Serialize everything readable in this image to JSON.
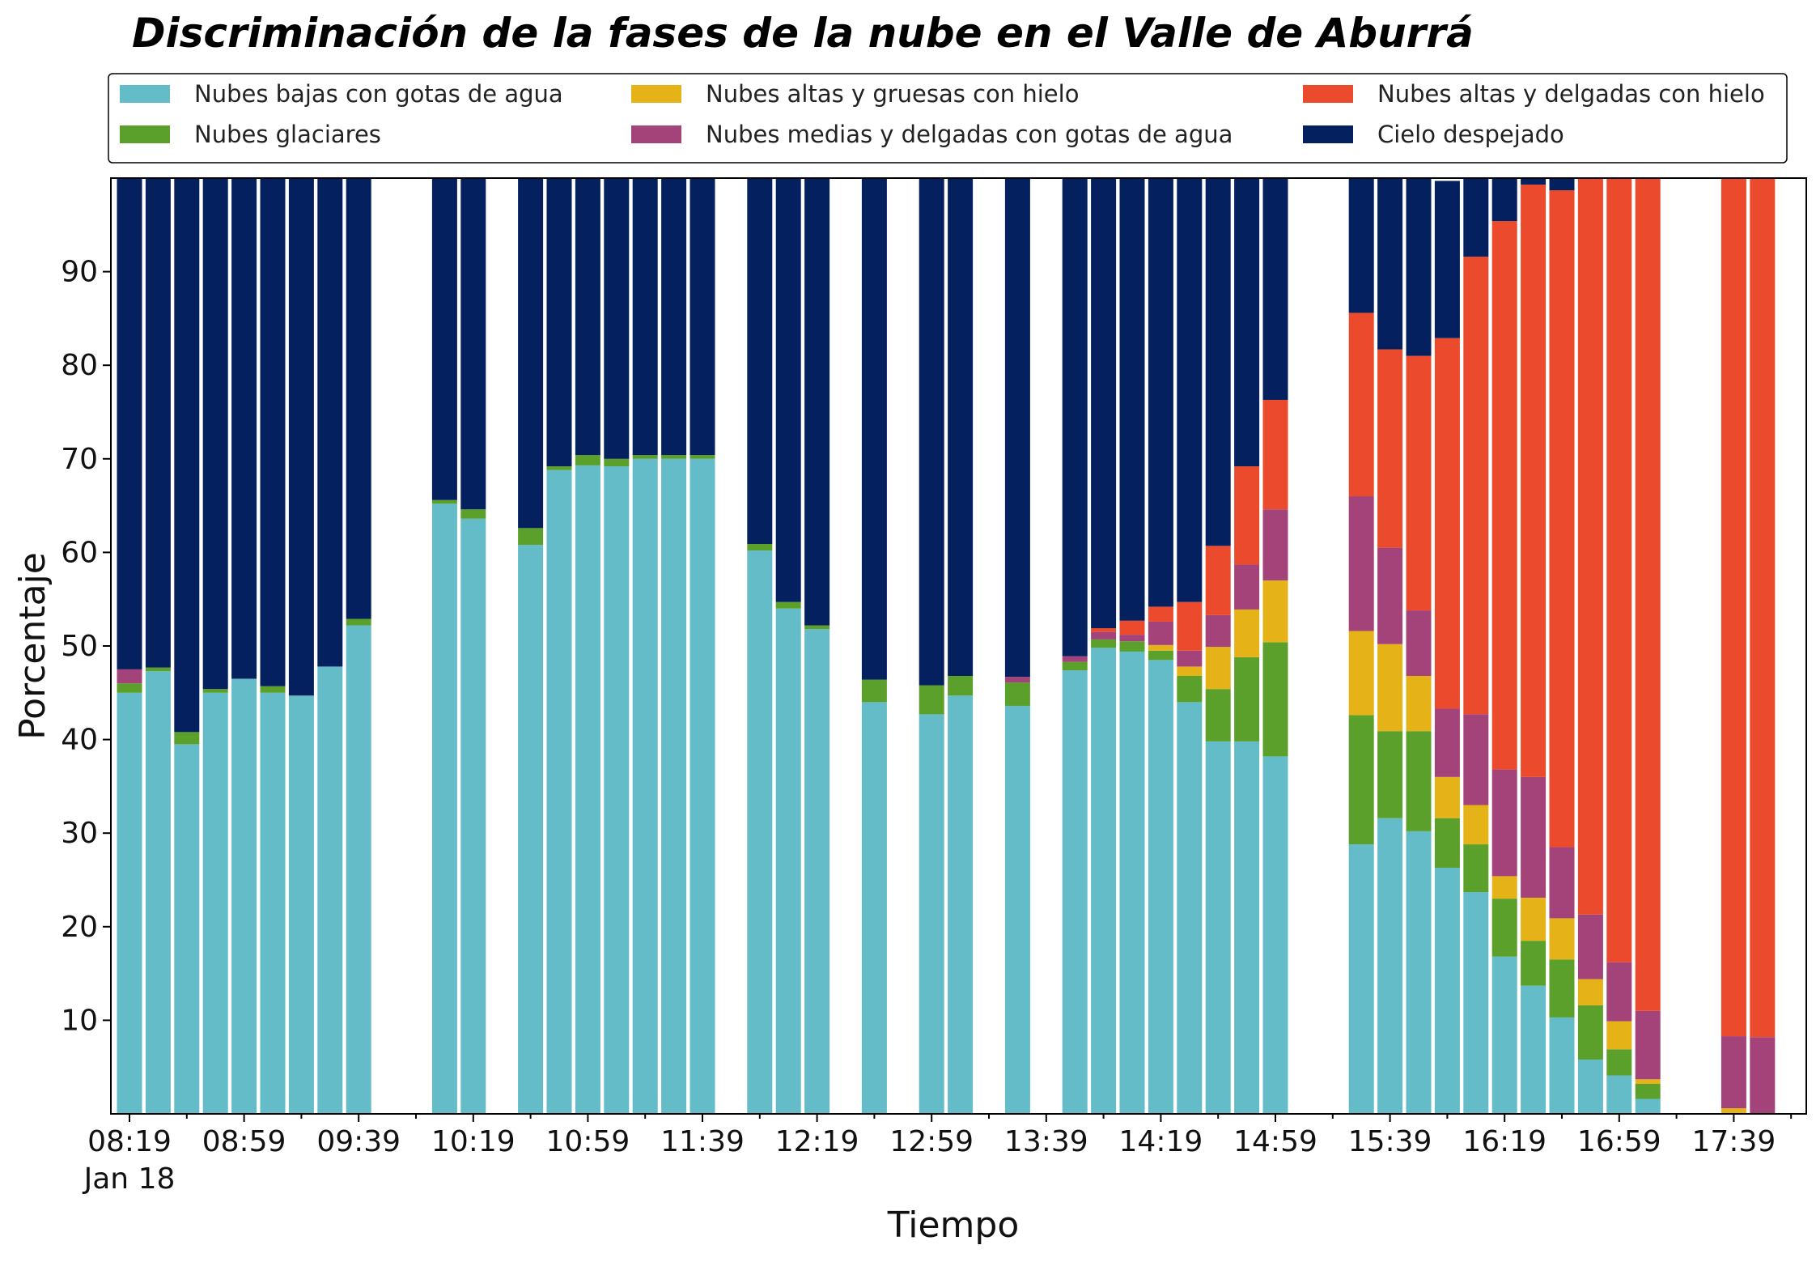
{
  "chart_data": {
    "type": "bar",
    "stacked": true,
    "title": "Discriminación de la fases de la nube en el Valle de Aburrá",
    "xlabel": "Tiempo",
    "ylabel": "Porcentaje",
    "ylim": [
      0,
      100
    ],
    "y_ticks": [
      10,
      20,
      30,
      40,
      50,
      60,
      70,
      80,
      90
    ],
    "x_tick_labels": [
      "08:19",
      "08:59",
      "09:39",
      "10:19",
      "10:59",
      "11:39",
      "12:19",
      "12:59",
      "13:39",
      "14:19",
      "14:59",
      "15:39",
      "16:19",
      "16:59",
      "17:39"
    ],
    "x_tick_sublabel": "Jan 18",
    "legend_position": "top",
    "interval_minutes": 10,
    "start_time": "08:19",
    "series": [
      {
        "name": "Nubes bajas con gotas de agua",
        "color": "#63bcc8",
        "values": [
          45.0,
          47.3,
          39.5,
          45.0,
          46.5,
          45.0,
          44.7,
          47.8,
          52.2,
          null,
          null,
          65.2,
          63.6,
          null,
          60.8,
          68.8,
          69.3,
          69.2,
          70.0,
          70.0,
          70.0,
          null,
          60.2,
          54.0,
          51.8,
          null,
          44.0,
          null,
          42.7,
          44.7,
          null,
          43.6,
          null,
          47.4,
          49.8,
          49.4,
          48.5,
          44.0,
          39.8,
          39.8,
          38.2,
          null,
          null,
          28.8,
          31.6,
          30.2,
          26.3,
          23.7,
          16.8,
          13.7,
          10.3,
          5.8,
          4.1,
          1.6,
          null,
          null,
          0,
          0
        ]
      },
      {
        "name": "Nubes glaciares",
        "color": "#5ca02c",
        "values": [
          1.0,
          0.4,
          1.3,
          0.4,
          0,
          0.7,
          0,
          0,
          0.7,
          null,
          null,
          0.4,
          1.0,
          null,
          1.8,
          0.4,
          1.1,
          0.8,
          0.4,
          0.4,
          0.4,
          null,
          0.7,
          0.7,
          0.4,
          null,
          2.4,
          null,
          3.1,
          2.1,
          null,
          2.5,
          null,
          0.9,
          0.9,
          1.1,
          1.0,
          2.8,
          5.6,
          9.0,
          12.2,
          null,
          null,
          13.8,
          9.3,
          10.7,
          5.3,
          5.1,
          6.2,
          4.8,
          6.2,
          5.8,
          2.8,
          1.6,
          null,
          null,
          0,
          0
        ]
      },
      {
        "name": "Nubes altas y gruesas con hielo",
        "color": "#e5b217",
        "values": [
          0,
          0,
          0,
          0,
          0,
          0,
          0,
          0,
          0,
          null,
          null,
          0,
          0,
          null,
          0,
          0,
          0,
          0,
          0,
          0,
          0,
          null,
          0,
          0,
          0,
          null,
          0,
          null,
          0,
          0,
          null,
          0,
          null,
          0,
          0,
          0,
          0.6,
          1.0,
          4.5,
          5.1,
          6.6,
          null,
          null,
          9.0,
          9.3,
          5.9,
          4.4,
          4.2,
          2.4,
          4.6,
          4.4,
          2.8,
          3.0,
          0.5,
          null,
          null,
          0.6,
          0
        ]
      },
      {
        "name": "Nubes medias y delgadas con gotas de agua",
        "color": "#a3437a",
        "values": [
          1.5,
          0,
          0,
          0,
          0,
          0,
          0,
          0,
          0,
          null,
          null,
          0,
          0,
          null,
          0,
          0,
          0,
          0,
          0,
          0,
          0,
          null,
          0,
          0,
          0,
          null,
          0,
          null,
          0,
          0,
          null,
          0.6,
          null,
          0.6,
          0.8,
          0.7,
          2.5,
          1.7,
          3.4,
          4.8,
          7.6,
          null,
          null,
          14.4,
          10.3,
          7.0,
          7.3,
          9.7,
          11.4,
          12.9,
          7.6,
          6.9,
          6.3,
          7.3,
          null,
          null,
          7.7,
          8.2
        ]
      },
      {
        "name": "Nubes altas y delgadas con hielo",
        "color": "#eb4a2c",
        "values": [
          0,
          0,
          0,
          0,
          0,
          0,
          0,
          0,
          0,
          null,
          null,
          0,
          0,
          null,
          0,
          0,
          0,
          0,
          0,
          0,
          0,
          null,
          0,
          0,
          0,
          null,
          0,
          null,
          0,
          0,
          null,
          0,
          null,
          0,
          0.4,
          1.5,
          1.6,
          5.2,
          7.4,
          10.5,
          11.7,
          null,
          null,
          19.6,
          21.2,
          27.2,
          39.6,
          48.9,
          58.6,
          63.3,
          70.2,
          78.7,
          83.8,
          89.0,
          null,
          null,
          91.7,
          91.8
        ]
      },
      {
        "name": "Cielo despejado",
        "color": "#04205e",
        "values": [
          52.5,
          52.3,
          59.2,
          54.6,
          53.5,
          54.3,
          55.3,
          52.2,
          47.1,
          null,
          null,
          34.4,
          35.4,
          null,
          37.4,
          30.8,
          29.6,
          30.0,
          29.6,
          29.6,
          29.6,
          null,
          39.1,
          45.3,
          47.8,
          null,
          53.6,
          null,
          54.2,
          53.2,
          null,
          53.3,
          null,
          51.1,
          48.1,
          47.3,
          45.8,
          45.3,
          39.3,
          30.8,
          23.7,
          null,
          null,
          14.4,
          18.3,
          19.0,
          16.8,
          8.4,
          4.6,
          0.7,
          1.3,
          0,
          0,
          0,
          null,
          null,
          0,
          0
        ]
      }
    ]
  }
}
